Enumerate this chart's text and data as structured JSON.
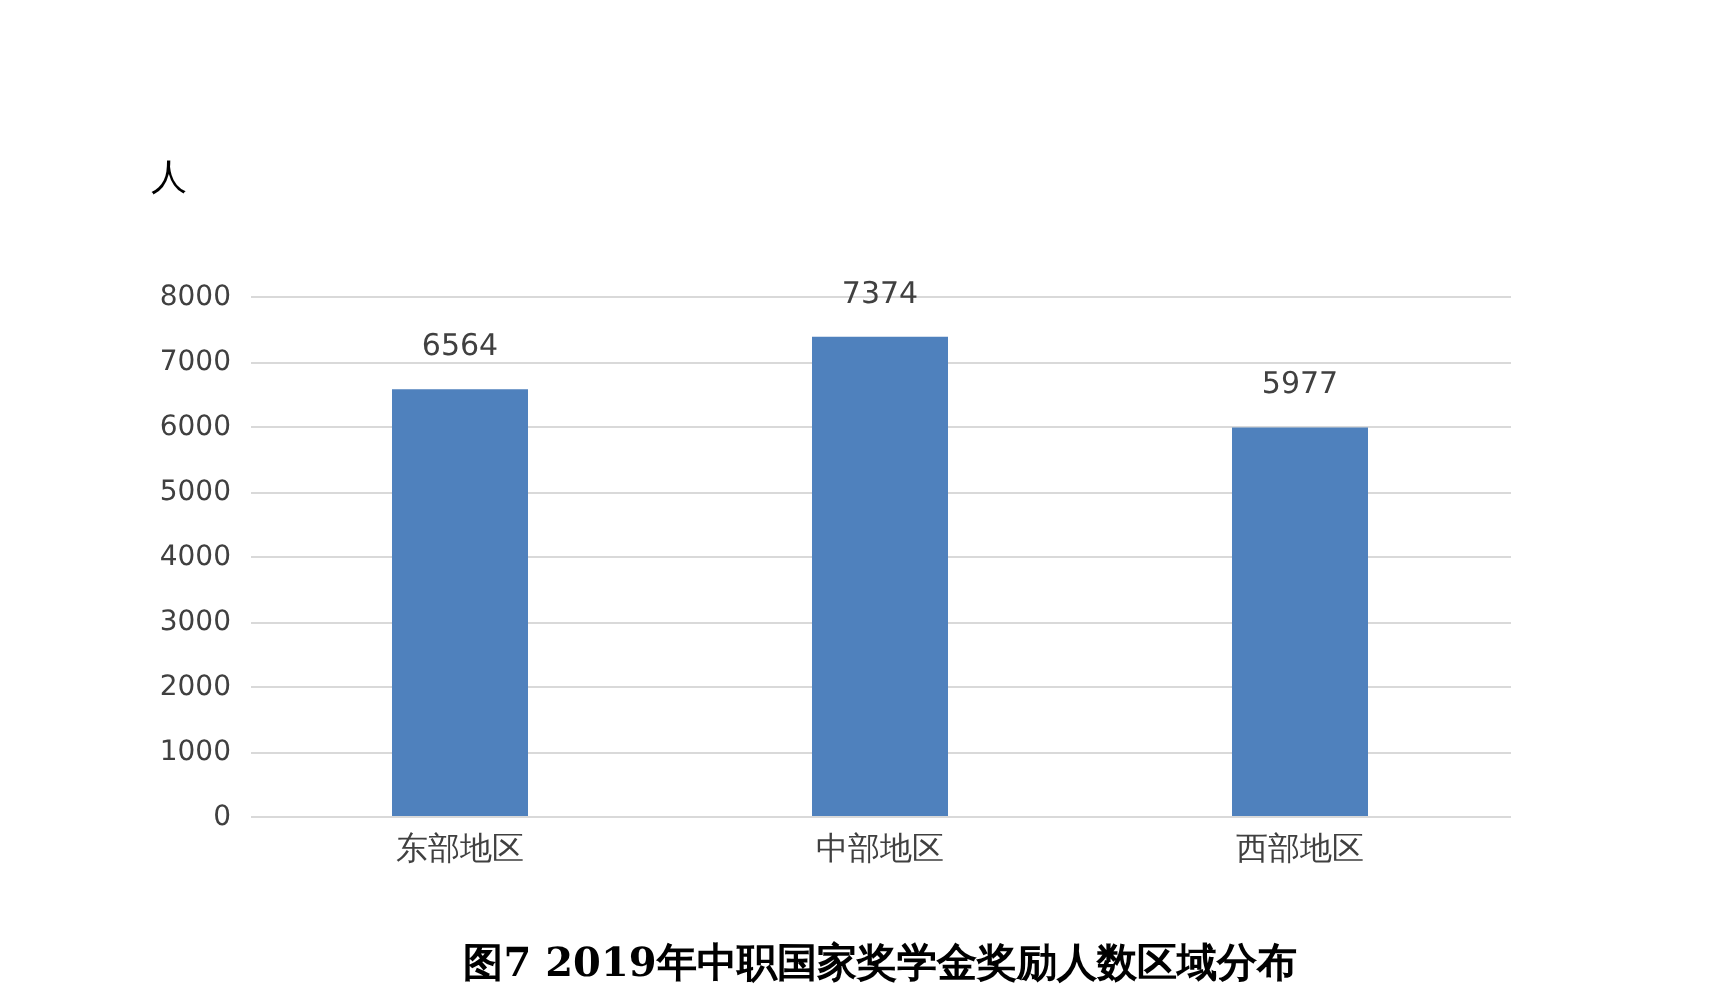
{
  "chart_data": {
    "type": "bar",
    "title": "图7        2019年中职国家奖学金奖励人数区域分布",
    "ylabel": "人",
    "categories": [
      "东部地区",
      "中部地区",
      "西部地区"
    ],
    "values": [
      6564,
      7374,
      5977
    ],
    "color": "#4f81bd",
    "ylim": [
      0,
      8000
    ],
    "yticks": [
      0,
      1000,
      2000,
      3000,
      4000,
      5000,
      6000,
      7000,
      8000
    ],
    "grid": "y",
    "data_labels": true
  }
}
